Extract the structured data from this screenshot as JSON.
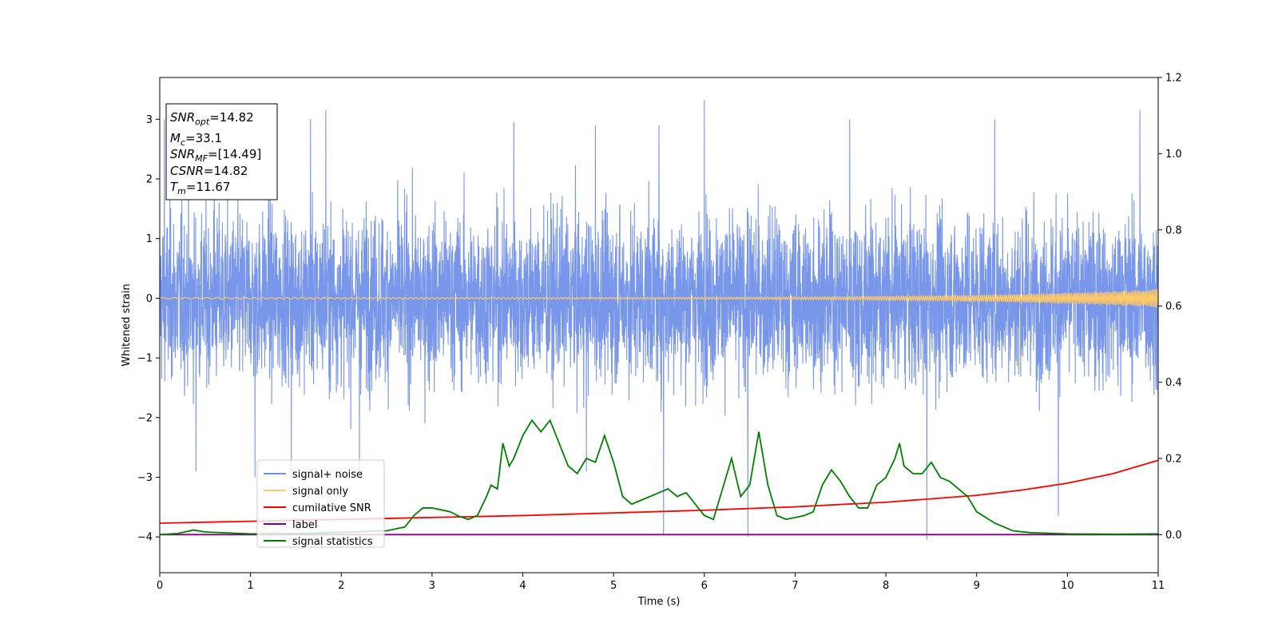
{
  "chart_data": {
    "type": "line",
    "xlabel": "Time (s)",
    "ylabel": "Whitened strain",
    "xlim": [
      0,
      11
    ],
    "ylim_left": [
      -4.6,
      3.7
    ],
    "ylim_right": [
      -0.1,
      1.2
    ],
    "x_ticks": [
      "0",
      "1",
      "2",
      "3",
      "4",
      "5",
      "6",
      "7",
      "8",
      "9",
      "10",
      "11"
    ],
    "y_ticks_left": [
      "3",
      "2",
      "1",
      "0",
      "−1",
      "−2",
      "−3",
      "−4"
    ],
    "y_ticks_right": [
      "1.2",
      "1.0",
      "0.8",
      "0.6",
      "0.4",
      "0.2",
      "0.0"
    ],
    "legend": {
      "placement": "lower-left",
      "entries": [
        {
          "label": "signal+ noise",
          "color": "#6d8de8"
        },
        {
          "label": "signal only",
          "color": "#ffc966"
        },
        {
          "label": "cumilative SNR",
          "color": "#ff0000"
        },
        {
          "label": "label",
          "color": "#800080"
        },
        {
          "label": "signal statistics",
          "color": "#008000"
        }
      ]
    },
    "info_box": {
      "snr_opt": {
        "base": "SNR",
        "sub": "opt",
        "value": "=14.82"
      },
      "mc": {
        "base": "M",
        "sub": "c",
        "value": "=33.1"
      },
      "snr_mf": {
        "base": "SNR",
        "sub": "MF",
        "value": "=[14.49]"
      },
      "csnr": {
        "base": "CSNR",
        "sub": "",
        "value": "=14.82"
      },
      "tm": {
        "base": "T",
        "sub": "m",
        "value": "=11.67"
      }
    },
    "series": [
      {
        "name": "signal+ noise",
        "axis": "left",
        "color": "#6d8de8",
        "description_values": "dense noise approx. within [-2.6, 2.6] with spikes to about 3.3 and -4.0",
        "spikes": [
          [
            0.05,
            3.0
          ],
          [
            0.6,
            2.9
          ],
          [
            1.2,
            2.8
          ],
          [
            1.66,
            3.0
          ],
          [
            1.83,
            3.15
          ],
          [
            3.9,
            2.95
          ],
          [
            4.8,
            2.9
          ],
          [
            5.5,
            2.9
          ],
          [
            6.0,
            3.32
          ],
          [
            7.6,
            3.0
          ],
          [
            9.2,
            3.0
          ],
          [
            10.8,
            3.15
          ],
          [
            1.05,
            -3.0
          ],
          [
            1.45,
            -2.9
          ],
          [
            2.2,
            -2.9
          ],
          [
            5.55,
            -3.95
          ],
          [
            6.48,
            -4.0
          ],
          [
            8.45,
            -4.05
          ],
          [
            9.9,
            -3.65
          ],
          [
            4.7,
            -2.9
          ],
          [
            0.4,
            -2.9
          ]
        ]
      },
      {
        "name": "signal only",
        "axis": "left",
        "color": "#ffc966",
        "description_values": "chirp oscillation near 0, amplitude growing from about 0.01 to about 0.15 at t=11"
      },
      {
        "name": "cumilative SNR",
        "axis": "right",
        "color": "#ff0000",
        "x": [
          0,
          1,
          2,
          3,
          4,
          5,
          6,
          7,
          8,
          9,
          9.5,
          10,
          10.5,
          11
        ],
        "y": [
          0.03,
          0.035,
          0.04,
          0.045,
          0.05,
          0.057,
          0.064,
          0.073,
          0.085,
          0.103,
          0.117,
          0.135,
          0.16,
          0.195
        ]
      },
      {
        "name": "label",
        "axis": "right",
        "color": "#800080",
        "x": [
          0,
          11
        ],
        "y": [
          0.0,
          0.0
        ]
      },
      {
        "name": "signal statistics",
        "axis": "right",
        "color": "#008000",
        "x": [
          0,
          0.2,
          0.37,
          0.5,
          1.0,
          1.5,
          2.0,
          2.5,
          2.7,
          2.8,
          2.9,
          3.0,
          3.1,
          3.2,
          3.3,
          3.4,
          3.5,
          3.6,
          3.65,
          3.72,
          3.78,
          3.85,
          3.9,
          4.0,
          4.1,
          4.2,
          4.3,
          4.4,
          4.5,
          4.6,
          4.7,
          4.8,
          4.9,
          5.0,
          5.1,
          5.2,
          5.3,
          5.4,
          5.5,
          5.6,
          5.7,
          5.8,
          5.9,
          6.0,
          6.1,
          6.2,
          6.3,
          6.4,
          6.5,
          6.6,
          6.7,
          6.8,
          6.9,
          7.0,
          7.1,
          7.2,
          7.3,
          7.4,
          7.5,
          7.6,
          7.7,
          7.8,
          7.9,
          8.0,
          8.1,
          8.15,
          8.2,
          8.3,
          8.4,
          8.5,
          8.6,
          8.7,
          8.8,
          8.9,
          9.0,
          9.2,
          9.4,
          9.6,
          10.0,
          10.5,
          11.0
        ],
        "y": [
          0.0,
          0.003,
          0.012,
          0.007,
          0.002,
          0.003,
          0.006,
          0.01,
          0.02,
          0.05,
          0.07,
          0.07,
          0.065,
          0.06,
          0.048,
          0.04,
          0.05,
          0.1,
          0.13,
          0.12,
          0.24,
          0.18,
          0.2,
          0.26,
          0.3,
          0.27,
          0.3,
          0.24,
          0.18,
          0.16,
          0.2,
          0.19,
          0.26,
          0.19,
          0.1,
          0.08,
          0.09,
          0.1,
          0.11,
          0.12,
          0.1,
          0.11,
          0.08,
          0.05,
          0.04,
          0.12,
          0.2,
          0.1,
          0.13,
          0.27,
          0.13,
          0.05,
          0.04,
          0.045,
          0.05,
          0.06,
          0.13,
          0.17,
          0.14,
          0.1,
          0.07,
          0.07,
          0.13,
          0.15,
          0.2,
          0.24,
          0.18,
          0.16,
          0.16,
          0.19,
          0.15,
          0.14,
          0.12,
          0.1,
          0.06,
          0.03,
          0.01,
          0.005,
          0.002,
          0.001,
          0.002
        ]
      }
    ]
  }
}
